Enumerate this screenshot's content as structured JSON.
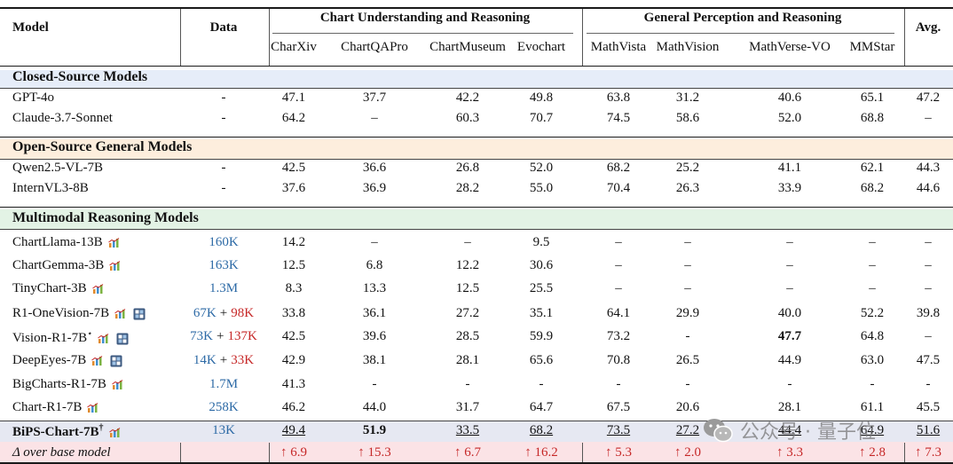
{
  "header": {
    "model": "Model",
    "data": "Data",
    "group1": "Chart Understanding and Reasoning",
    "group2": "General Perception and Reasoning",
    "avg": "Avg.",
    "subcols": [
      "CharXiv",
      "ChartQAPro",
      "ChartMuseum",
      "Evochart",
      "MathVista",
      "MathVision",
      "MathVerse-VO",
      "MMStar"
    ]
  },
  "sections": {
    "closed": "Closed-Source Models",
    "open": "Open-Source General Models",
    "mm": "Multimodal Reasoning Models"
  },
  "rows": [
    {
      "model": "GPT-4o",
      "data": "-",
      "v": [
        "47.1",
        "37.7",
        "42.2",
        "49.8",
        "63.8",
        "31.2",
        "40.6",
        "65.1",
        "47.2"
      ]
    },
    {
      "model": "Claude-3.7-Sonnet",
      "data": "-",
      "v": [
        "64.2",
        "–",
        "60.3",
        "70.7",
        "74.5",
        "58.6",
        "52.0",
        "68.8",
        "–"
      ]
    },
    {
      "model": "Qwen2.5-VL-7B",
      "data": "-",
      "v": [
        "42.5",
        "36.6",
        "26.8",
        "52.0",
        "68.2",
        "25.2",
        "41.1",
        "62.1",
        "44.3"
      ]
    },
    {
      "model": "InternVL3-8B",
      "data": "-",
      "v": [
        "37.6",
        "36.9",
        "28.2",
        "55.0",
        "70.4",
        "26.3",
        "33.9",
        "68.2",
        "44.6"
      ]
    },
    {
      "model": "ChartLlama-13B",
      "data_a": "160K",
      "v": [
        "14.2",
        "–",
        "–",
        "9.5",
        "–",
        "–",
        "–",
        "–",
        "–"
      ]
    },
    {
      "model": "ChartGemma-3B",
      "data_a": "163K",
      "v": [
        "12.5",
        "6.8",
        "12.2",
        "30.6",
        "–",
        "–",
        "–",
        "–",
        "–"
      ]
    },
    {
      "model": "TinyChart-3B",
      "data_a": "1.3M",
      "v": [
        "8.3",
        "13.3",
        "12.5",
        "25.5",
        "–",
        "–",
        "–",
        "–",
        "–"
      ]
    },
    {
      "model": "R1-OneVision-7B",
      "data_a": "67K",
      "data_plus": "+",
      "data_b": "98K",
      "v": [
        "33.8",
        "36.1",
        "27.2",
        "35.1",
        "64.1",
        "29.9",
        "40.0",
        "52.2",
        "39.8"
      ]
    },
    {
      "model": "Vision-R1-7B",
      "sup": "⋆",
      "data_a": "73K",
      "data_plus": "+",
      "data_b": "137K",
      "v": [
        "42.5",
        "39.6",
        "28.5",
        "59.9",
        "73.2",
        "-",
        "47.7",
        "64.8",
        "–"
      ]
    },
    {
      "model": "DeepEyes-7B",
      "data_a": "14K",
      "data_plus": "+",
      "data_b": "33K",
      "v": [
        "42.9",
        "38.1",
        "28.1",
        "65.6",
        "70.8",
        "26.5",
        "44.9",
        "63.0",
        "47.5"
      ]
    },
    {
      "model": "BigCharts-R1-7B",
      "data_a": "1.7M",
      "v": [
        "41.3",
        "-",
        "-",
        "-",
        "-",
        "-",
        "-",
        "-",
        "-"
      ]
    },
    {
      "model": "Chart-R1-7B",
      "data_a": "258K",
      "v": [
        "46.2",
        "44.0",
        "31.7",
        "64.7",
        "67.5",
        "20.6",
        "28.1",
        "61.1",
        "45.5"
      ]
    },
    {
      "model": "BiPS-Chart-7B",
      "sup": "†",
      "data_a": "13K",
      "v": [
        "49.4",
        "51.9",
        "33.5",
        "68.2",
        "73.5",
        "27.2",
        "44.4",
        "64.9",
        "51.6"
      ]
    }
  ],
  "delta": {
    "label": "Δ over base model",
    "v": [
      "↑ 6.9",
      "↑ 15.3",
      "↑ 6.7",
      "↑ 16.2",
      "↑ 5.3",
      "↑ 2.0",
      "↑ 3.3",
      "↑ 2.8",
      "↑ 7.3"
    ]
  },
  "watermark": "公众号 · 量子位",
  "colors": {
    "closed_band": "#e6edf9",
    "open_band": "#fdeedd",
    "mm_band": "#e3f3e5",
    "bips_band": "#e6e8f2",
    "delta_band": "#fbe3e6",
    "data_blue": "#2d6aa6",
    "data_red": "#c62828"
  }
}
